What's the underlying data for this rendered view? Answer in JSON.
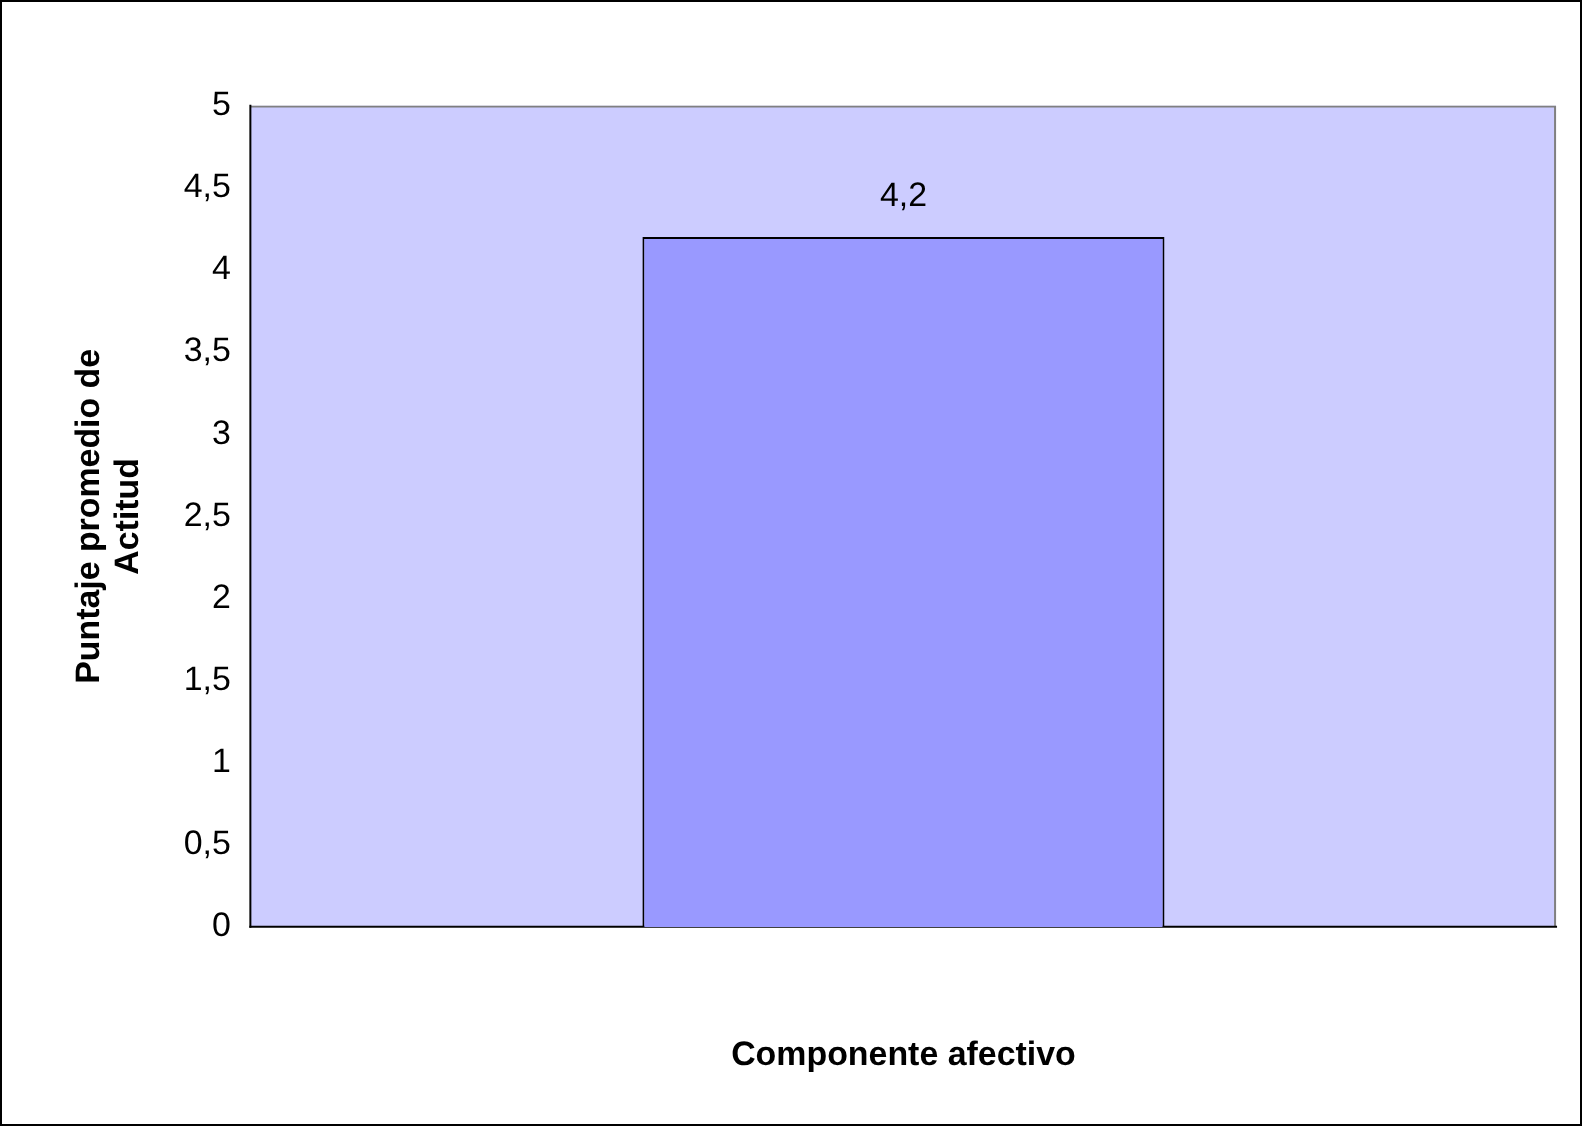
{
  "chart_data": {
    "type": "bar",
    "xlabel": "Componente afectivo",
    "ylabel": "Puntaje promedio de Actitud",
    "categories": [
      null
    ],
    "values": [
      4.2
    ],
    "color": "#9999ff",
    "value_labels": [
      "4,2"
    ],
    "ylim": [
      0,
      5
    ],
    "yticks": [
      0,
      {
        "value": 0.5,
        "label": "0,5"
      },
      1,
      {
        "value": 1.5,
        "label": "1,5"
      },
      2,
      {
        "value": 2.5,
        "label": "2,5"
      },
      3,
      {
        "value": 3.5,
        "label": "3,5"
      },
      4,
      {
        "value": 4.5,
        "label": "4,5"
      },
      5
    ],
    "grid": false,
    "legend": false
  }
}
